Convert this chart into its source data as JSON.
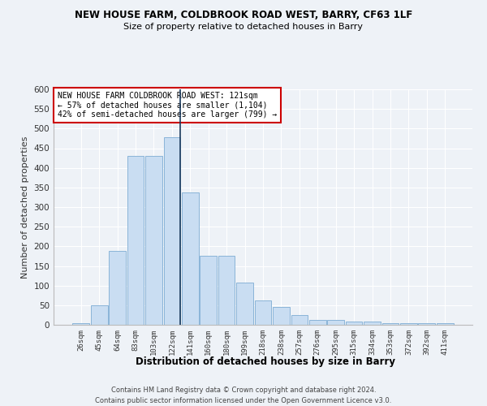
{
  "title": "NEW HOUSE FARM, COLDBROOK ROAD WEST, BARRY, CF63 1LF",
  "subtitle": "Size of property relative to detached houses in Barry",
  "xlabel": "Distribution of detached houses by size in Barry",
  "ylabel": "Number of detached properties",
  "categories": [
    "26sqm",
    "45sqm",
    "64sqm",
    "83sqm",
    "103sqm",
    "122sqm",
    "141sqm",
    "160sqm",
    "180sqm",
    "199sqm",
    "218sqm",
    "238sqm",
    "257sqm",
    "276sqm",
    "295sqm",
    "315sqm",
    "334sqm",
    "353sqm",
    "372sqm",
    "392sqm",
    "411sqm"
  ],
  "values": [
    5,
    50,
    188,
    430,
    430,
    477,
    338,
    175,
    175,
    107,
    62,
    45,
    25,
    12,
    12,
    8,
    8,
    5,
    5,
    5,
    5
  ],
  "bar_color": "#c9ddf2",
  "bar_edge_color": "#8ab4d8",
  "highlight_index": 5,
  "highlight_line_color": "#1a3a5c",
  "annotation_text": "NEW HOUSE FARM COLDBROOK ROAD WEST: 121sqm\n← 57% of detached houses are smaller (1,104)\n42% of semi-detached houses are larger (799) →",
  "annotation_box_color": "#ffffff",
  "annotation_border_color": "#cc0000",
  "background_color": "#eef2f7",
  "grid_color": "#ffffff",
  "ylim": [
    0,
    600
  ],
  "yticks": [
    0,
    50,
    100,
    150,
    200,
    250,
    300,
    350,
    400,
    450,
    500,
    550,
    600
  ],
  "footer_line1": "Contains HM Land Registry data © Crown copyright and database right 2024.",
  "footer_line2": "Contains public sector information licensed under the Open Government Licence v3.0."
}
